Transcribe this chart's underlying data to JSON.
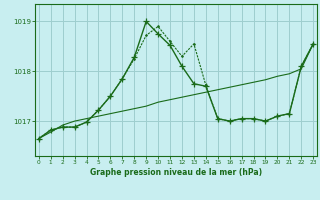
{
  "title": "Graphe pression niveau de la mer (hPa)",
  "background_color": "#c8eef0",
  "grid_color": "#9ecece",
  "line_color": "#1a6b1a",
  "x_ticks": [
    0,
    1,
    2,
    3,
    4,
    5,
    6,
    7,
    8,
    9,
    10,
    11,
    12,
    13,
    14,
    15,
    16,
    17,
    18,
    19,
    20,
    21,
    22,
    23
  ],
  "y_ticks": [
    1017,
    1018,
    1019
  ],
  "ylim": [
    1016.3,
    1019.35
  ],
  "xlim": [
    -0.3,
    23.3
  ],
  "series_trend": [
    1016.65,
    1016.78,
    1016.92,
    1017.0,
    1017.05,
    1017.1,
    1017.15,
    1017.2,
    1017.25,
    1017.3,
    1017.38,
    1017.43,
    1017.48,
    1017.53,
    1017.58,
    1017.63,
    1017.68,
    1017.73,
    1017.78,
    1017.83,
    1017.9,
    1017.95,
    1018.05,
    1018.55
  ],
  "series_dotted": [
    1016.65,
    1016.82,
    1016.88,
    1016.88,
    1016.98,
    1017.22,
    1017.5,
    1017.85,
    1018.25,
    1018.72,
    1018.9,
    1018.6,
    1018.3,
    1018.55,
    1017.72,
    1017.05,
    1017.0,
    1017.05,
    1017.05,
    1017.0,
    1017.1,
    1017.15,
    1018.1,
    1018.55
  ],
  "series_solid": [
    1016.65,
    1016.82,
    1016.88,
    1016.88,
    1016.98,
    1017.22,
    1017.5,
    1017.85,
    1018.28,
    1019.0,
    1018.75,
    1018.52,
    1018.1,
    1017.75,
    1017.7,
    1017.05,
    1017.0,
    1017.05,
    1017.05,
    1017.0,
    1017.1,
    1017.15,
    1018.1,
    1018.55
  ]
}
